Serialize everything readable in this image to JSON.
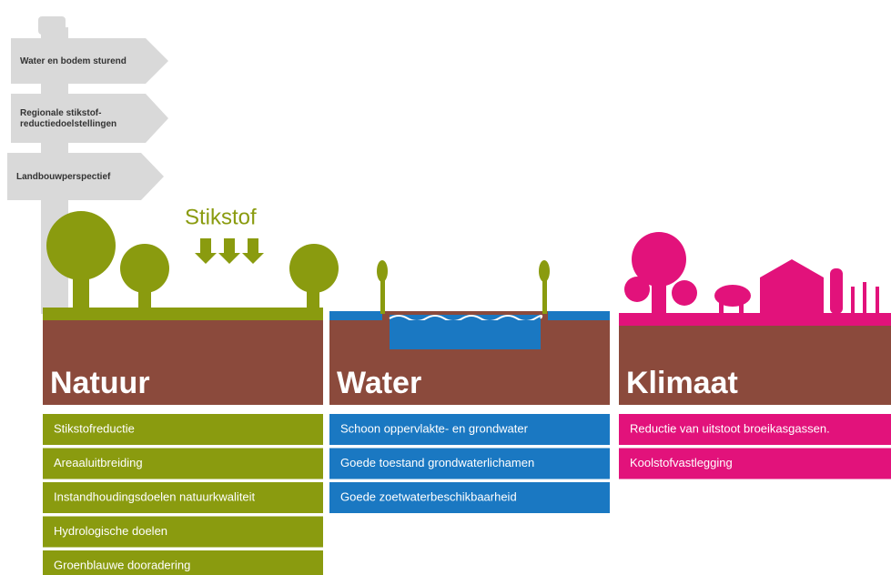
{
  "signs": [
    "Water en bodem sturend",
    "Regionale stikstof-\nreductiedoelstellingen",
    "Landbouwperspectief"
  ],
  "stikstof": "Stikstof",
  "columns": [
    {
      "title": "Natuur",
      "items": [
        "Stikstofreductie",
        "Areaaluitbreiding",
        "Instandhoudingsdoelen natuurkwaliteit",
        "Hydrologische doelen",
        "Groenblauwe dooradering"
      ]
    },
    {
      "title": "Water",
      "items": [
        "Schoon oppervlakte- en grondwater",
        "Goede toestand grondwaterlichamen",
        "Goede zoetwaterbeschikbaarheid"
      ]
    },
    {
      "title": "Klimaat",
      "items": [
        "Reductie van uitstoot broeikasgassen.",
        "Koolstofvastlegging"
      ]
    }
  ]
}
